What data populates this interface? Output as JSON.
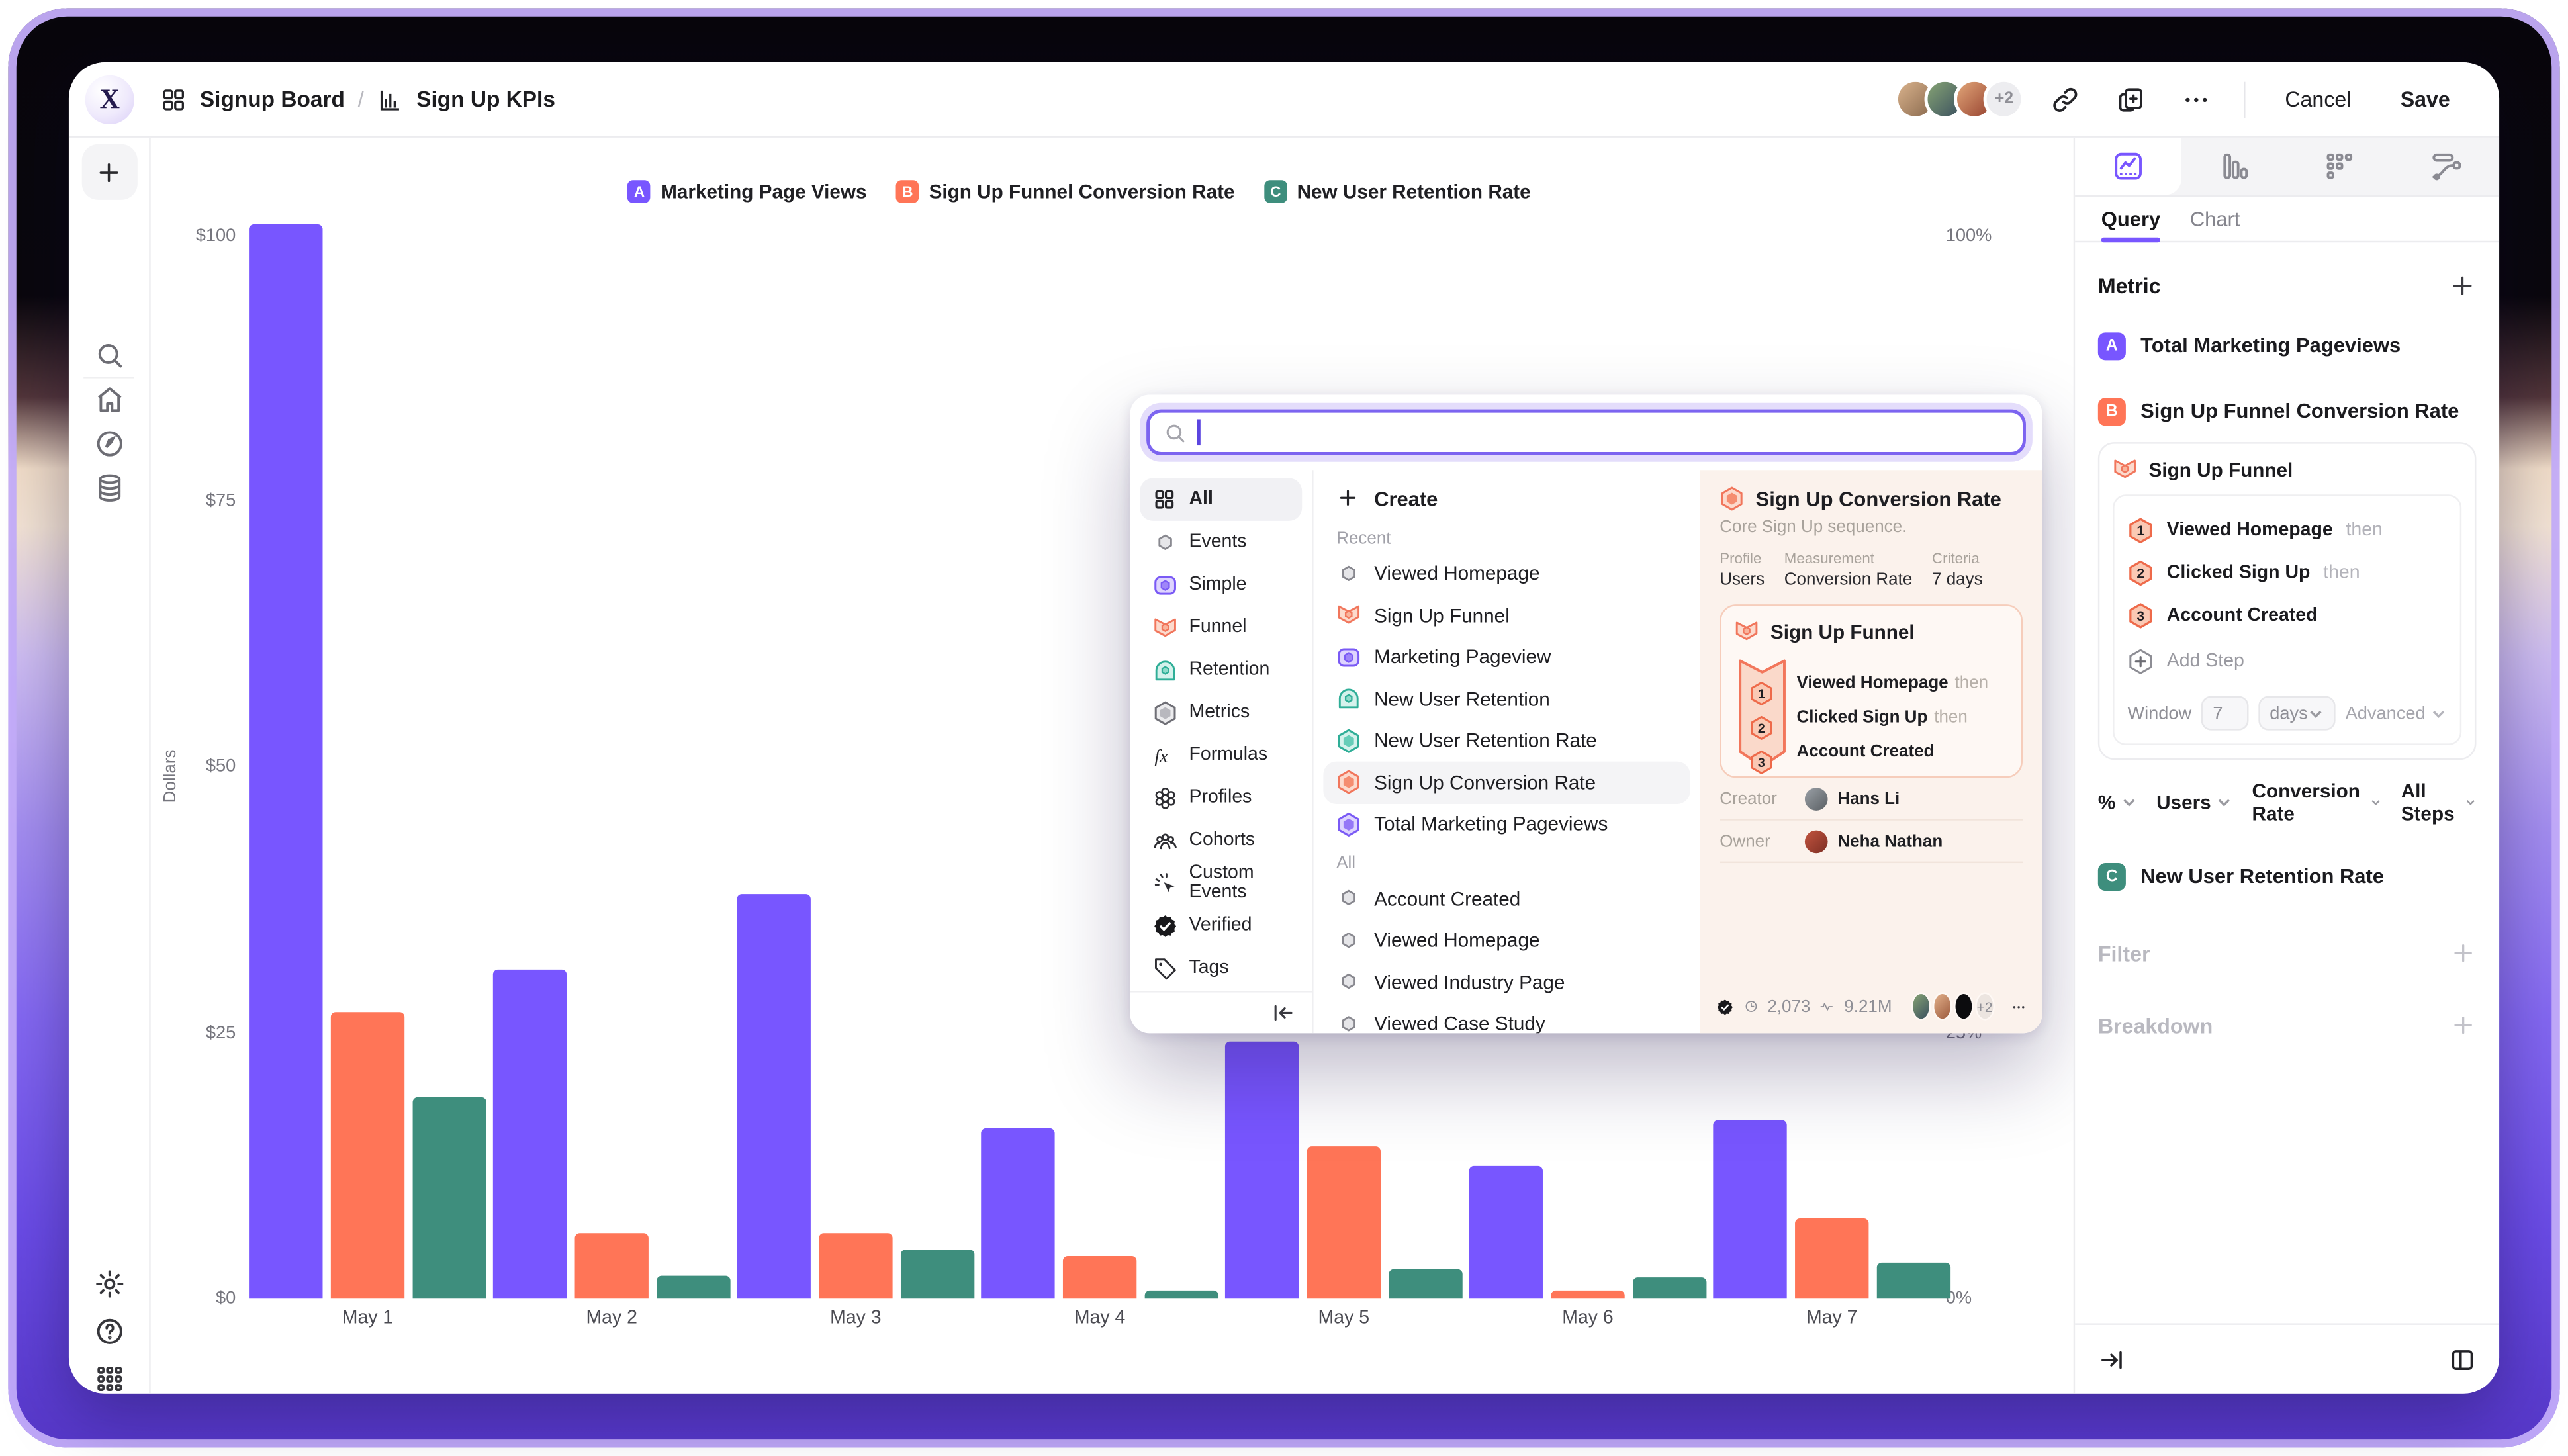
{
  "header": {
    "board": "Signup Board",
    "separator": "/",
    "report": "Sign Up KPIs",
    "avatar_overflow": "+2",
    "cancel_label": "Cancel",
    "save_label": "Save"
  },
  "chart_data": {
    "type": "bar",
    "categories": [
      "May 1",
      "May 2",
      "May 3",
      "May 4",
      "May 5",
      "May 6",
      "May 7"
    ],
    "series": [
      {
        "key": "A",
        "name": "Marketing Page Views",
        "color": "#7856FF",
        "values": [
          101,
          31,
          38,
          16,
          24.2,
          12.5,
          16.8
        ]
      },
      {
        "key": "B",
        "name": "Sign Up Funnel Conversion Rate",
        "color": "#FF7557",
        "values": [
          27,
          6.2,
          6.2,
          4,
          14.3,
          0.8,
          7.5
        ]
      },
      {
        "key": "C",
        "name": "New User Retention Rate",
        "color": "#3E8E7D",
        "values": [
          19,
          2.2,
          4.6,
          0.8,
          2.8,
          2,
          3.4
        ]
      }
    ],
    "ylabel": "Dollars",
    "y_ticks": [
      {
        "label": "$0",
        "value": 0
      },
      {
        "label": "$25",
        "value": 25
      },
      {
        "label": "$50",
        "value": 50
      },
      {
        "label": "$75",
        "value": 75
      },
      {
        "label": "$100",
        "value": 100
      }
    ],
    "right_axis_ticks": [
      {
        "label": "0%",
        "value": 0
      },
      {
        "label": "25%",
        "value": 25
      },
      {
        "label": "100%",
        "value": 100
      }
    ],
    "ylim": [
      0,
      100
    ],
    "grid": false,
    "legend_position": "top"
  },
  "modal": {
    "search_placeholder": "",
    "search_value": "",
    "categories": [
      {
        "icon": "grid",
        "label": "All",
        "selected": true
      },
      {
        "icon": "event",
        "label": "Events",
        "selected": false
      },
      {
        "icon": "simple",
        "label": "Simple",
        "selected": false
      },
      {
        "icon": "funnel",
        "label": "Funnel",
        "selected": false
      },
      {
        "icon": "retention",
        "label": "Retention",
        "selected": false
      },
      {
        "icon": "metrics",
        "label": "Metrics",
        "selected": false
      },
      {
        "icon": "formula",
        "label": "Formulas",
        "selected": false
      },
      {
        "icon": "profiles",
        "label": "Profiles",
        "selected": false
      },
      {
        "icon": "cohorts",
        "label": "Cohorts",
        "selected": false
      },
      {
        "icon": "custom-events",
        "label": "Custom Events",
        "selected": false
      },
      {
        "icon": "verified",
        "label": "Verified",
        "selected": false
      },
      {
        "icon": "tag",
        "label": "Tags",
        "selected": false
      }
    ],
    "create_label": "Create",
    "recent_label": "Recent",
    "recent_items": [
      {
        "icon": "event",
        "label": "Viewed Homepage",
        "selected": false
      },
      {
        "icon": "funnel",
        "label": "Sign Up Funnel",
        "selected": false
      },
      {
        "icon": "simple",
        "label": "Marketing Pageview",
        "selected": false
      },
      {
        "icon": "retention",
        "label": "New User Retention",
        "selected": false
      },
      {
        "icon": "hex-teal",
        "label": "New User Retention Rate",
        "selected": false
      },
      {
        "icon": "hex-orange",
        "label": "Sign Up Conversion Rate",
        "selected": true
      },
      {
        "icon": "hex-purple",
        "label": "Total Marketing Pageviews",
        "selected": false
      }
    ],
    "all_label": "All",
    "all_items": [
      {
        "icon": "event",
        "label": "Account Created",
        "selected": false
      },
      {
        "icon": "event",
        "label": "Viewed Homepage",
        "selected": false
      },
      {
        "icon": "event",
        "label": "Viewed Industry Page",
        "selected": false
      },
      {
        "icon": "event",
        "label": "Viewed Case Study",
        "selected": false
      }
    ],
    "detail": {
      "title": "Sign Up Conversion Rate",
      "subtitle": "Core Sign Up sequence.",
      "meta": [
        {
          "label": "Profile",
          "value": "Users"
        },
        {
          "label": "Measurement",
          "value": "Conversion Rate"
        },
        {
          "label": "Criteria",
          "value": "7 days"
        }
      ],
      "funnel_title": "Sign Up Funnel",
      "steps": [
        {
          "num": "1",
          "name": "Viewed Homepage",
          "conj": "then"
        },
        {
          "num": "2",
          "name": "Clicked Sign Up",
          "conj": "then"
        },
        {
          "num": "3",
          "name": "Account Created",
          "conj": ""
        }
      ],
      "creator_label": "Creator",
      "creator_name": "Hans Li",
      "owner_label": "Owner",
      "owner_name": "Neha Nathan",
      "stat_queries": "2,073",
      "stat_volume": "9.21M",
      "stat_overflow": "+2"
    }
  },
  "sidebar": {
    "query_tab": "Query",
    "chart_tab": "Chart",
    "metric_heading": "Metric",
    "metric_a": {
      "letter": "A",
      "color": "#7856FF",
      "name": "Total Marketing Pageviews"
    },
    "metric_b": {
      "letter": "B",
      "color": "#FF7557",
      "name": "Sign Up Funnel Conversion Rate",
      "card_title": "Sign Up Funnel",
      "steps": [
        {
          "num": "1",
          "name": "Viewed Homepage",
          "conj": "then"
        },
        {
          "num": "2",
          "name": "Clicked Sign Up",
          "conj": "then"
        },
        {
          "num": "3",
          "name": "Account Created",
          "conj": ""
        }
      ],
      "add_step_label": "Add Step",
      "window_label": "Window",
      "window_value": "7",
      "window_unit": "days",
      "advanced_label": "Advanced",
      "controls": [
        "%",
        "Users",
        "Conversion Rate",
        "All Steps"
      ]
    },
    "metric_c": {
      "letter": "C",
      "color": "#3E8E7D",
      "name": "New User Retention Rate"
    },
    "filter_label": "Filter",
    "breakdown_label": "Breakdown"
  }
}
